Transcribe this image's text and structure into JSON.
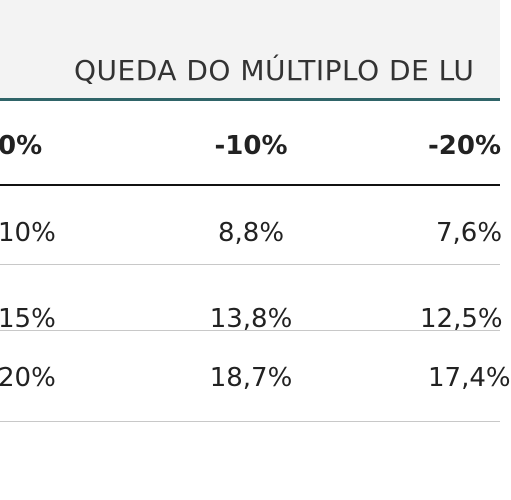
{
  "table": {
    "group_title": "QUEDA DO MÚLTIPLO DE LU",
    "column_headers": [
      "0%",
      "-10%",
      "-20%"
    ],
    "rows": [
      [
        "10%",
        "8,8%",
        "7,6%"
      ],
      [
        "15%",
        "13,8%",
        "12,5%"
      ],
      [
        "20%",
        "18,7%",
        "17,4%"
      ]
    ]
  },
  "colors": {
    "accent": "#2f6468",
    "header_bg": "#f3f3f3",
    "text": "#222222",
    "rule": "#c8c8c8"
  }
}
